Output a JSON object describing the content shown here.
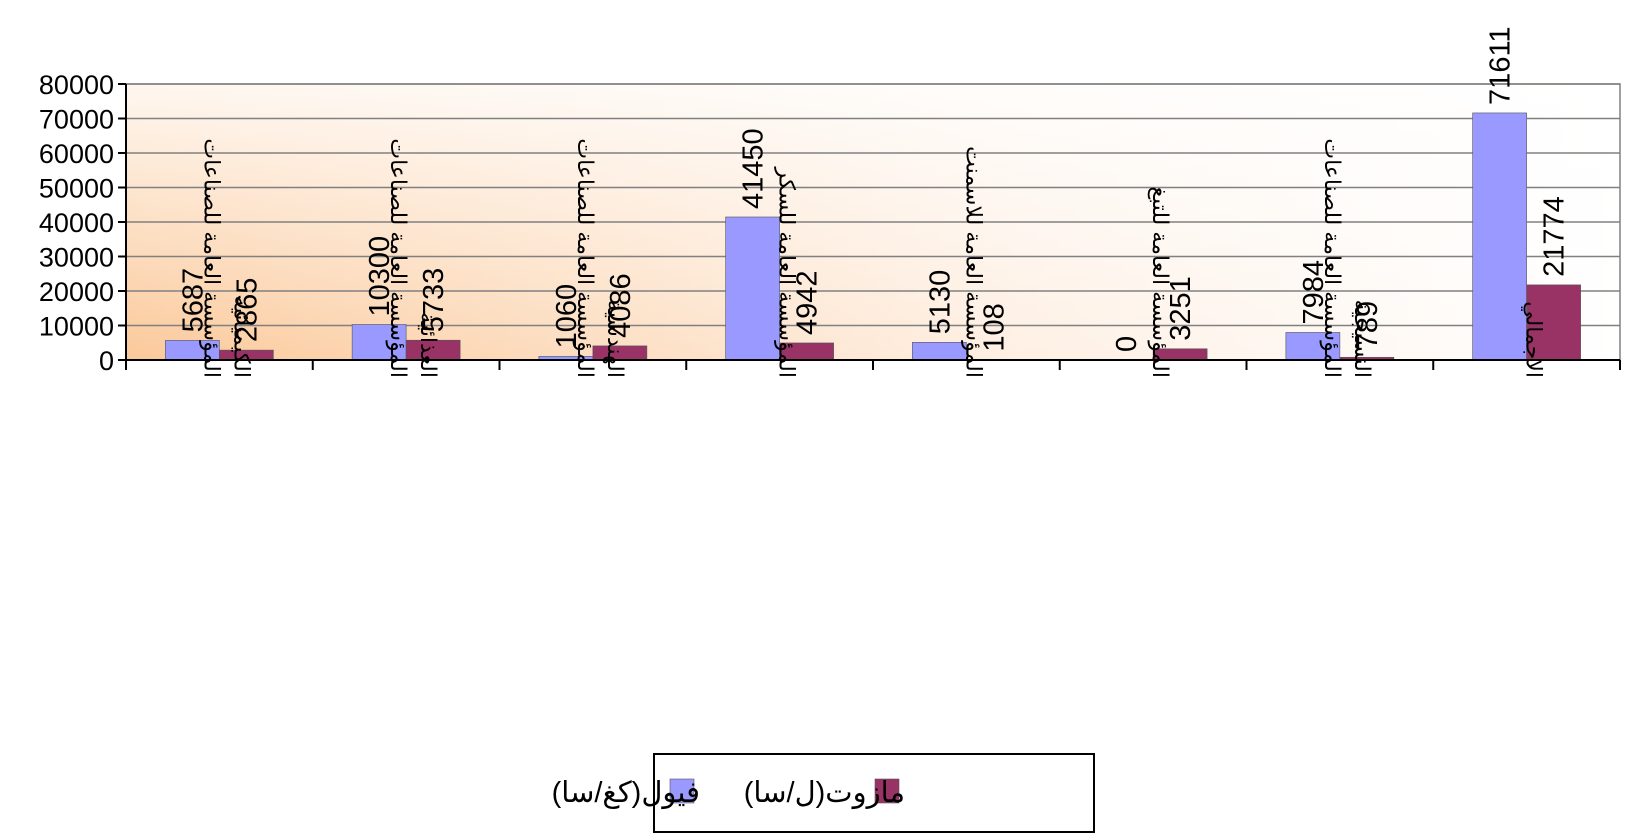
{
  "chart_data": {
    "type": "bar",
    "categories": [
      [
        "المؤسسة العامة للصناعات",
        "الكيميائية"
      ],
      [
        "المؤسسة العامة للصناعات",
        "الغذائية"
      ],
      [
        "المؤسسة العامة للصناعات",
        "الهندسية"
      ],
      [
        "المؤسسة العامة للسكر"
      ],
      [
        "المؤسسة العامة للاسمنت"
      ],
      [
        "المؤسسة العامة للتبغ"
      ],
      [
        "المؤسسة العامة للصناعات",
        "النسيجية"
      ],
      [
        "الاجمالي"
      ]
    ],
    "series": [
      {
        "name": "فيول(كغ/سا)",
        "color": "#9999ff",
        "values": [
          5687,
          10300,
          1060,
          41450,
          5130,
          0,
          7984,
          71611
        ]
      },
      {
        "name": "مازوت(ل/سا)",
        "color": "#993366",
        "values": [
          2865,
          5733,
          4086,
          4942,
          108,
          3251,
          789,
          21774
        ]
      }
    ],
    "ylim": [
      0,
      80000
    ],
    "yticks": [
      0,
      10000,
      20000,
      30000,
      40000,
      50000,
      60000,
      70000,
      80000
    ],
    "grid": true,
    "legend_position": "bottom"
  }
}
